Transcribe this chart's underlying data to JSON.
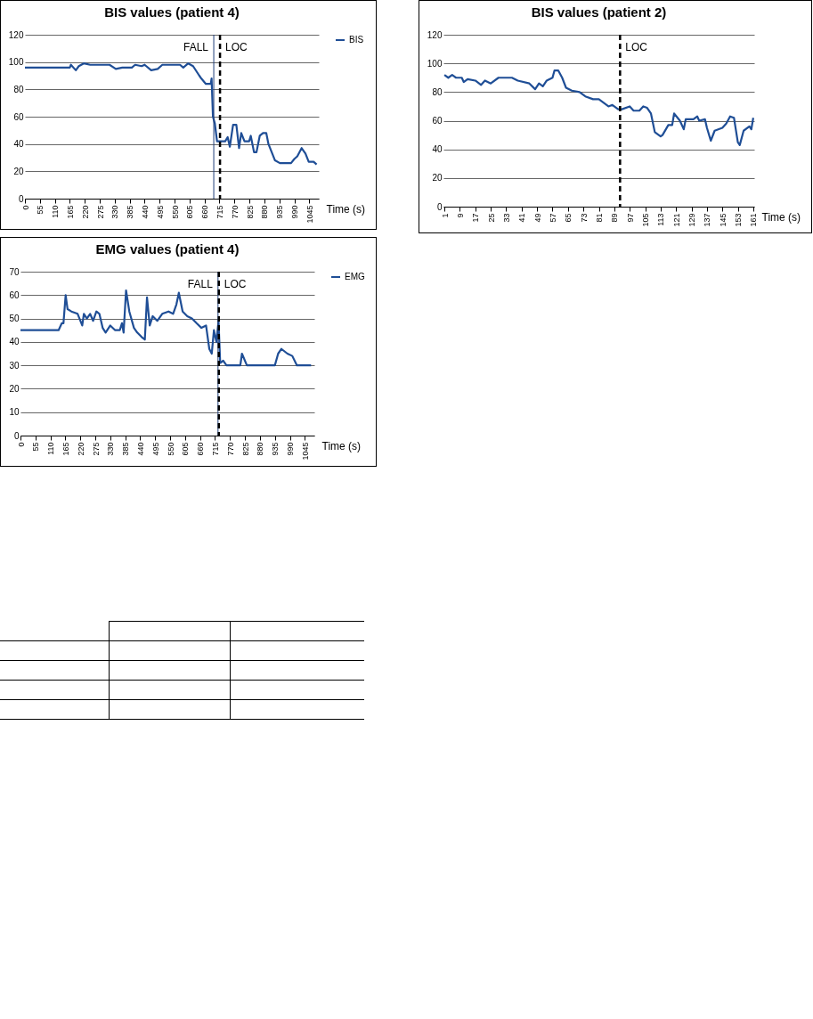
{
  "chart_data": [
    {
      "type": "line",
      "title": "BIS values (patient 4)",
      "xlabel": "Time (s)",
      "xlim": [
        0,
        1080
      ],
      "xticks": [
        0,
        55,
        110,
        165,
        220,
        275,
        330,
        385,
        440,
        495,
        550,
        605,
        660,
        715,
        770,
        825,
        880,
        935,
        990,
        1045
      ],
      "ylim": [
        0,
        120
      ],
      "yticks": [
        0,
        20,
        40,
        60,
        80,
        100,
        120
      ],
      "grid": "y",
      "legend": "right",
      "x": [
        0,
        165,
        169,
        187,
        198,
        216,
        240,
        311,
        334,
        358,
        393,
        405,
        429,
        440,
        464,
        488,
        505,
        570,
        582,
        600,
        618,
        641,
        648,
        665,
        683,
        686,
        691,
        698,
        706,
        736,
        745,
        753,
        765,
        777,
        787,
        795,
        807,
        824,
        830,
        842,
        851,
        863,
        875,
        887,
        895,
        907,
        919,
        937,
        978,
        990,
        1001,
        1017,
        1031,
        1043,
        1061,
        1072
      ],
      "series": [
        {
          "name": "BIS",
          "color": "#1f4e96",
          "values": [
            96,
            96,
            98,
            94,
            97,
            99,
            98,
            98,
            95,
            96,
            96,
            98,
            97,
            98,
            94,
            95,
            98,
            98,
            96,
            99,
            97,
            90,
            88,
            84,
            84,
            88,
            60,
            55,
            42,
            42,
            45,
            38,
            54,
            54,
            37,
            48,
            42,
            42,
            46,
            34,
            34,
            46,
            48,
            48,
            40,
            34,
            28,
            26,
            26,
            29,
            31,
            37,
            33,
            27,
            27,
            25
          ]
        }
      ],
      "ref_lines": [
        {
          "axis": "x",
          "value": 694,
          "label": "FALL",
          "color": "#1f3f7a",
          "line_style": "solid"
        },
        {
          "axis": "x",
          "value": 717,
          "label": "LOC",
          "color": "#000000",
          "line_style": "dashed"
        }
      ]
    },
    {
      "type": "line",
      "title": "BIS values (patient 2)",
      "xlabel": "Time (s)",
      "xlim": [
        0.5,
        161.5
      ],
      "xticks": [
        1,
        9,
        17,
        25,
        33,
        41,
        49,
        57,
        65,
        73,
        81,
        89,
        97,
        105,
        113,
        121,
        129,
        137,
        145,
        153,
        161
      ],
      "ylim": [
        0,
        120
      ],
      "yticks": [
        0,
        20,
        40,
        60,
        80,
        100,
        120
      ],
      "grid": "y",
      "x": [
        1,
        3,
        5,
        7,
        10,
        11,
        13,
        17,
        20,
        22,
        25,
        29,
        36,
        39,
        45,
        48,
        50,
        52,
        54,
        57,
        58,
        60,
        62,
        64,
        67,
        71,
        74,
        78,
        81,
        86,
        88,
        91,
        93,
        97,
        99,
        102,
        104,
        106,
        108,
        110,
        113,
        114,
        117,
        119,
        120,
        123,
        125,
        126,
        130,
        132,
        133,
        136,
        137,
        139,
        141,
        145,
        147,
        149,
        151,
        153,
        154,
        156,
        159,
        160,
        161
      ],
      "series": [
        {
          "color": "#1f4e96",
          "values": [
            92,
            90,
            92,
            90,
            90,
            87,
            89,
            88,
            85,
            88,
            86,
            90,
            90,
            88,
            86,
            82,
            86,
            84,
            88,
            90,
            95,
            95,
            90,
            83,
            81,
            80,
            77,
            75,
            75,
            70,
            71,
            68,
            68,
            70,
            67,
            67,
            70,
            69,
            65,
            52,
            49,
            50,
            57,
            57,
            65,
            60,
            54,
            61,
            61,
            63,
            60,
            61,
            55,
            46,
            53,
            55,
            58,
            63,
            62,
            45,
            43,
            53,
            56,
            54,
            62
          ]
        }
      ],
      "ref_lines": [
        {
          "axis": "x",
          "value": 92,
          "label": "LOC",
          "color": "#000000",
          "line_style": "dashed"
        }
      ]
    },
    {
      "type": "line",
      "title": "EMG values (patient 4)",
      "xlabel": "Time (s)",
      "xlim": [
        0,
        1080
      ],
      "xticks": [
        0,
        55,
        110,
        165,
        220,
        275,
        330,
        385,
        440,
        495,
        550,
        605,
        660,
        715,
        770,
        825,
        880,
        935,
        990,
        1045
      ],
      "ylim": [
        0,
        70
      ],
      "yticks": [
        0,
        10,
        20,
        30,
        40,
        50,
        60,
        70
      ],
      "grid": "y",
      "legend": "right",
      "x": [
        0,
        140,
        152,
        158,
        166,
        173,
        187,
        210,
        227,
        233,
        244,
        256,
        267,
        279,
        290,
        302,
        313,
        330,
        348,
        365,
        373,
        379,
        388,
        400,
        417,
        429,
        446,
        457,
        465,
        475,
        486,
        503,
        521,
        544,
        561,
        573,
        582,
        596,
        613,
        630,
        647,
        665,
        682,
        694,
        703,
        711,
        720,
        728,
        734,
        745,
        757,
        808,
        814,
        832,
        935,
        947,
        959,
        981,
        999,
        1016,
        1056,
        1068
      ],
      "series": [
        {
          "name": "EMG",
          "color": "#1f4e96",
          "values": [
            45,
            45,
            48,
            48,
            60,
            54,
            53,
            52,
            47,
            52,
            50,
            52,
            49,
            53,
            52,
            46,
            44,
            47,
            45,
            45,
            48,
            44,
            62,
            53,
            46,
            44,
            42,
            41,
            59,
            47,
            51,
            49,
            52,
            53,
            52,
            56,
            61,
            53,
            51,
            50,
            48,
            46,
            47,
            37,
            35,
            45,
            40,
            49,
            31,
            32,
            30,
            30,
            35,
            30,
            30,
            35,
            37,
            35,
            34,
            30,
            30,
            30
          ]
        }
      ],
      "ref_lines": [
        {
          "axis": "x",
          "value": 726,
          "label": "FALL",
          "color": "#1f3f7a",
          "line_style": "solid"
        },
        {
          "axis": "x",
          "value": 729,
          "label": "LOC",
          "color": "#000000",
          "line_style": "dashed"
        }
      ]
    }
  ]
}
